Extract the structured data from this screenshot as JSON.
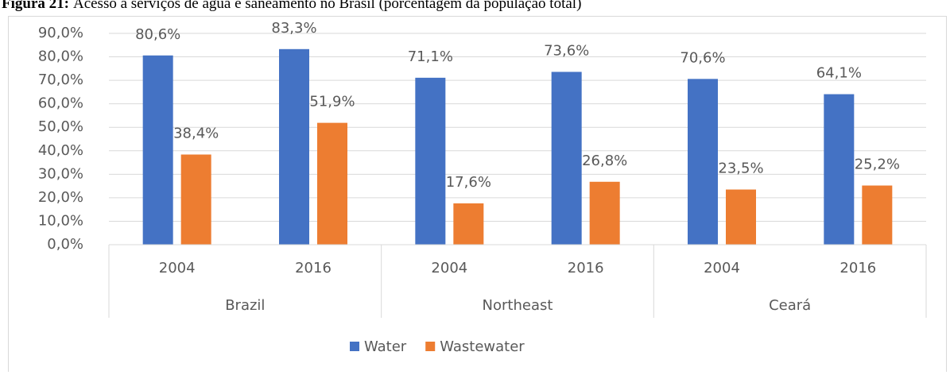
{
  "chart_data": {
    "type": "bar",
    "caption_label": "Figura 21:",
    "title": "Acesso a serviços de água e saneamento no Brasil (porcentagem da população total)",
    "categories": [
      "2004",
      "2016",
      "2004",
      "2016",
      "2004",
      "2016"
    ],
    "groups": [
      "Brazil",
      "Northeast",
      "Ceará"
    ],
    "series": [
      {
        "name": "Water",
        "color": "#4472c4",
        "values": [
          80.6,
          83.3,
          71.1,
          73.6,
          70.6,
          64.1
        ],
        "value_labels": [
          "80,6%",
          "83,3%",
          "71,1%",
          "73,6%",
          "70,6%",
          "64,1%"
        ]
      },
      {
        "name": "Wastewater",
        "color": "#ed7d31",
        "values": [
          38.4,
          51.9,
          17.6,
          26.8,
          23.5,
          25.2
        ],
        "value_labels": [
          "38,4%",
          "51,9%",
          "17,6%",
          "26,8%",
          "23,5%",
          "25,2%"
        ]
      }
    ],
    "ylim": [
      0,
      90
    ],
    "yticks": [
      {
        "value": 0,
        "label": "0,0%"
      },
      {
        "value": 10,
        "label": "10,0%"
      },
      {
        "value": 20,
        "label": "20,0%"
      },
      {
        "value": 30,
        "label": "30,0%"
      },
      {
        "value": 40,
        "label": "40,0%"
      },
      {
        "value": 50,
        "label": "50,0%"
      },
      {
        "value": 60,
        "label": "60,0%"
      },
      {
        "value": 70,
        "label": "70,0%"
      },
      {
        "value": 80,
        "label": "80,0%"
      },
      {
        "value": 90,
        "label": "90,0%"
      }
    ],
    "grid": true,
    "legend": "bottom"
  }
}
